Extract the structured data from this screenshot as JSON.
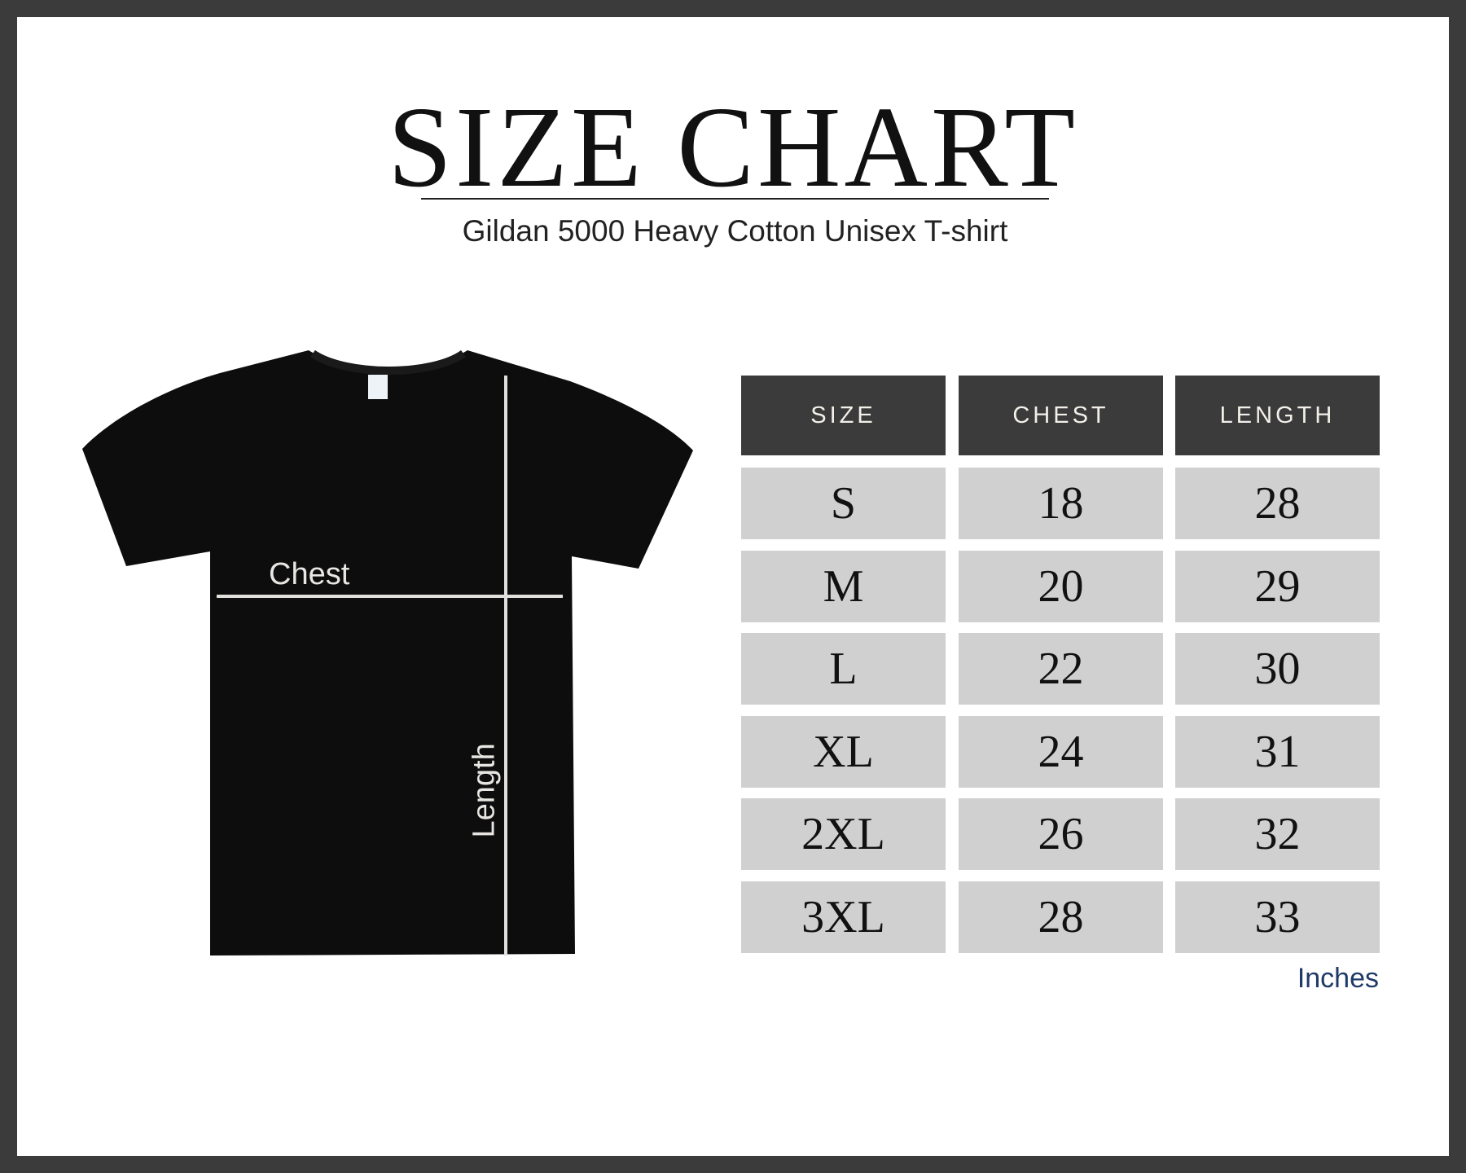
{
  "title": "SIZE CHART",
  "subtitle": "Gildan 5000 Heavy Cotton Unisex T-shirt",
  "diagram": {
    "chest_label": "Chest",
    "length_label": "Length",
    "shirt_color": "#0d0d0d"
  },
  "table": {
    "headers": [
      "SIZE",
      "CHEST",
      "LENGTH"
    ],
    "rows": [
      [
        "S",
        "18",
        "28"
      ],
      [
        "M",
        "20",
        "29"
      ],
      [
        "L",
        "22",
        "30"
      ],
      [
        "XL",
        "24",
        "31"
      ],
      [
        "2XL",
        "26",
        "32"
      ],
      [
        "3XL",
        "28",
        "33"
      ]
    ],
    "unit": "Inches"
  },
  "colors": {
    "frame": "#3b3b3b",
    "header_bg": "#3b3b3b",
    "cell_bg": "#d0d0d0",
    "unit_text": "#1f3a68"
  }
}
